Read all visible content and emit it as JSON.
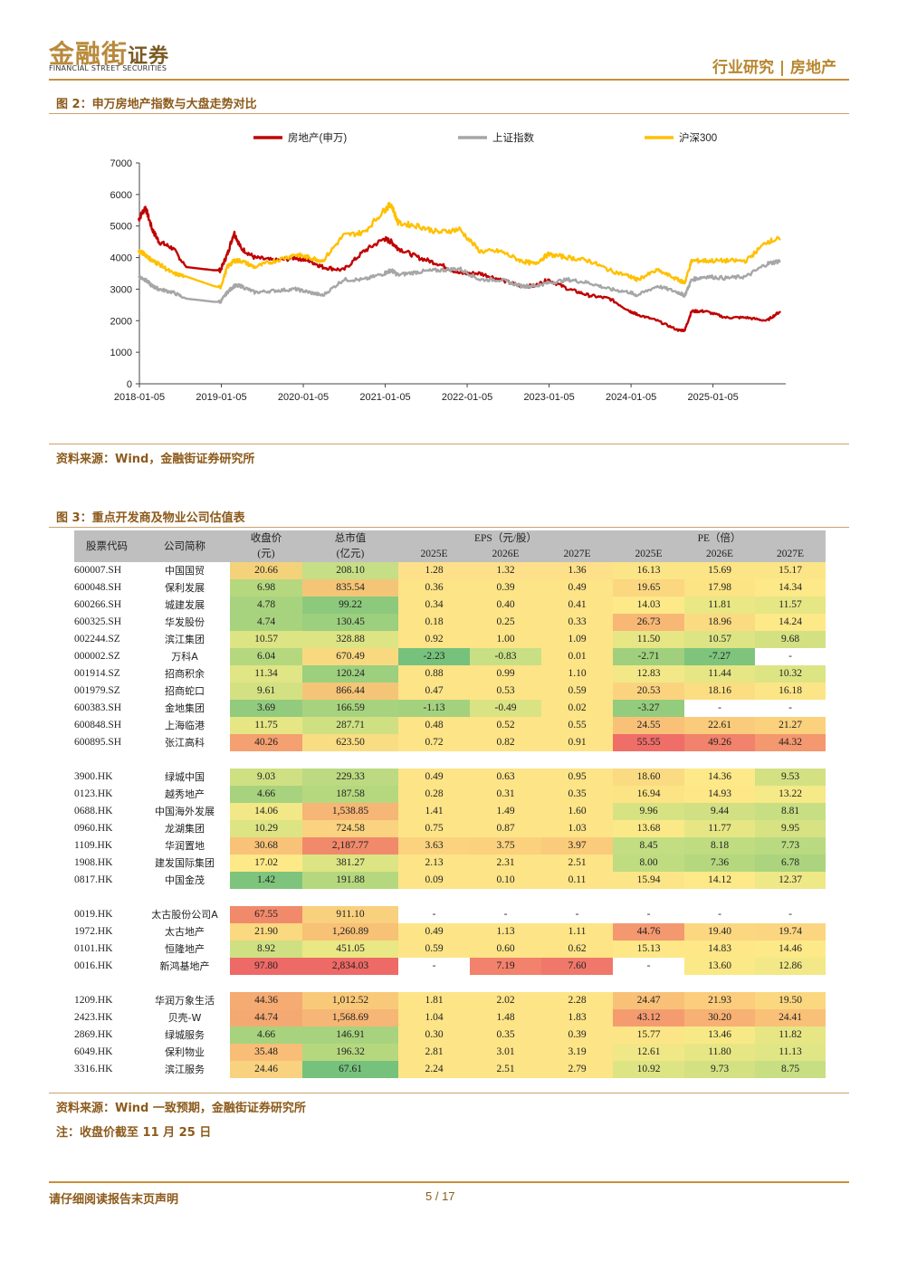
{
  "header": {
    "logo_cn": "金融街",
    "logo_cn_suffix": "证券",
    "logo_en": "FINANCIAL STREET SECURITIES",
    "category": "行业研究 | 房地产"
  },
  "figure2": {
    "title": "图 2：申万房地产指数与大盘走势对比",
    "source": "资料来源：Wind，金融街证券研究所"
  },
  "chart_data": {
    "type": "line",
    "title": "",
    "xlabel": "",
    "ylabel": "",
    "ylim": [
      0,
      7000
    ],
    "yticks": [
      "0",
      "1000",
      "2000",
      "3000",
      "4000",
      "5000",
      "6000",
      "7000"
    ],
    "xticks": [
      "2018-01-05",
      "2019-01-05",
      "2020-01-05",
      "2021-01-05",
      "2022-01-05",
      "2023-01-05",
      "2024-01-05",
      "2025-01-05"
    ],
    "legend_position": "top",
    "grid": false,
    "x": [
      "2018-01",
      "2018-02",
      "2018-03",
      "2018-04",
      "2018-06",
      "2018-08",
      "2018-12",
      "2019-01",
      "2019-02",
      "2019-03",
      "2019-04",
      "2019-06",
      "2019-09",
      "2019-12",
      "2020-02",
      "2020-04",
      "2020-07",
      "2020-10",
      "2021-01",
      "2021-02",
      "2021-03",
      "2021-06",
      "2021-09",
      "2021-12",
      "2022-03",
      "2022-06",
      "2022-09",
      "2022-11",
      "2023-01",
      "2023-04",
      "2023-07",
      "2023-10",
      "2024-01",
      "2024-02",
      "2024-05",
      "2024-08",
      "2024-09",
      "2024-10",
      "2024-12",
      "2025-03",
      "2025-06",
      "2025-09",
      "2025-11"
    ],
    "series": [
      {
        "name": "房地产(申万)",
        "color": "#c00000",
        "values": [
          5200,
          5600,
          4900,
          4500,
          4300,
          3700,
          3600,
          3600,
          4100,
          4800,
          4300,
          4000,
          3900,
          4000,
          3900,
          3700,
          3600,
          4200,
          4600,
          4500,
          4300,
          4000,
          3800,
          3500,
          3500,
          3300,
          3100,
          3100,
          3300,
          3000,
          2800,
          2700,
          2300,
          2200,
          2000,
          1700,
          1700,
          2300,
          2300,
          2100,
          2100,
          2000,
          2300
        ]
      },
      {
        "name": "上证指数",
        "color": "#a6a6a6",
        "values": [
          3400,
          3300,
          3100,
          3000,
          2900,
          2700,
          2600,
          2600,
          2900,
          3100,
          3100,
          2900,
          2950,
          3000,
          2900,
          2800,
          3300,
          3300,
          3500,
          3600,
          3450,
          3550,
          3600,
          3650,
          3300,
          3300,
          3100,
          3100,
          3200,
          3300,
          3200,
          3000,
          2900,
          2800,
          3100,
          2900,
          2800,
          3300,
          3400,
          3350,
          3400,
          3800,
          3900
        ]
      },
      {
        "name": "沪深300",
        "color": "#ffc000",
        "values": [
          4200,
          4100,
          3900,
          3800,
          3500,
          3400,
          3100,
          3050,
          3700,
          3900,
          3900,
          3700,
          3900,
          4100,
          4000,
          3900,
          4700,
          4800,
          5500,
          5700,
          5100,
          5000,
          4800,
          4900,
          4200,
          4200,
          3900,
          3800,
          4100,
          4000,
          3900,
          3600,
          3400,
          3300,
          3600,
          3300,
          3200,
          3900,
          3900,
          3900,
          3900,
          4500,
          4600
        ]
      }
    ]
  },
  "figure3": {
    "title": "图 3：重点开发商及物业公司估值表",
    "source": "资料来源：Wind 一致预期，金融街证券研究所",
    "note": "注：收盘价截至 11 月 25 日",
    "headers": {
      "code": "股票代码",
      "name": "公司简称",
      "close": "收盘价",
      "close_unit": "(元)",
      "mcap": "总市值",
      "mcap_unit": "(亿元)",
      "eps": "EPS（元/股）",
      "pe": "PE（倍）",
      "years": [
        "2025E",
        "2026E",
        "2027E",
        "2025E",
        "2026E",
        "2027E"
      ]
    },
    "groups": [
      [
        {
          "code": "600007.SH",
          "name": "中国国贸",
          "close": "20.66",
          "mcap": "208.10",
          "eps": [
            "1.28",
            "1.32",
            "1.36"
          ],
          "pe": [
            "16.13",
            "15.69",
            "15.17"
          ],
          "cc": "#f4d27a",
          "mc": "#c6de85",
          "ec": [
            "#fde089",
            "#fde089",
            "#fde089"
          ],
          "pc": [
            "#fce586",
            "#fce586",
            "#fce586"
          ]
        },
        {
          "code": "600048.SH",
          "name": "保利发展",
          "close": "6.98",
          "mcap": "835.54",
          "eps": [
            "0.36",
            "0.39",
            "0.49"
          ],
          "pe": [
            "19.65",
            "17.98",
            "14.34"
          ],
          "cc": "#b5d87f",
          "mc": "#f5c577",
          "ec": [
            "#fde487",
            "#fde487",
            "#fde487"
          ],
          "pc": [
            "#fbd780",
            "#fce384",
            "#fde988"
          ]
        },
        {
          "code": "600266.SH",
          "name": "城建发展",
          "close": "4.78",
          "mcap": "99.22",
          "eps": [
            "0.34",
            "0.40",
            "0.41"
          ],
          "pe": [
            "14.03",
            "11.81",
            "11.57"
          ],
          "cc": "#a8d37e",
          "mc": "#8cc97d",
          "ec": [
            "#fde487",
            "#fde487",
            "#fde487"
          ],
          "pc": [
            "#fde988",
            "#eae785",
            "#e6e685"
          ]
        },
        {
          "code": "600325.SH",
          "name": "华发股份",
          "close": "4.74",
          "mcap": "130.45",
          "eps": [
            "0.18",
            "0.25",
            "0.33"
          ],
          "pe": [
            "26.73",
            "18.96",
            "14.24"
          ],
          "cc": "#a8d37e",
          "mc": "#9ccf7e",
          "ec": [
            "#fde487",
            "#fde487",
            "#fde487"
          ],
          "pc": [
            "#f8b775",
            "#fbdb81",
            "#fde988"
          ]
        },
        {
          "code": "002244.SZ",
          "name": "滨江集团",
          "close": "10.57",
          "mcap": "328.88",
          "eps": [
            "0.92",
            "1.00",
            "1.09"
          ],
          "pe": [
            "11.50",
            "10.57",
            "9.68"
          ],
          "cc": "#dde484",
          "mc": "#dde484",
          "ec": [
            "#fde487",
            "#fde487",
            "#fde487"
          ],
          "pc": [
            "#e6e685",
            "#dde484",
            "#d3e183"
          ]
        },
        {
          "code": "000002.SZ",
          "name": "万科A",
          "close": "6.04",
          "mcap": "670.49",
          "eps": [
            "-2.23",
            "-0.83",
            "0.01"
          ],
          "pe": [
            "-2.71",
            "-7.27",
            "-"
          ],
          "cc": "#b5d87f",
          "mc": "#f8d980",
          "ec": [
            "#76c27c",
            "#c8df84",
            "#fde487"
          ],
          "pc": [
            "#a0d07d",
            "#7ec47c",
            "#ffffff"
          ]
        },
        {
          "code": "001914.SZ",
          "name": "招商积余",
          "close": "11.34",
          "mcap": "120.24",
          "eps": [
            "0.88",
            "0.99",
            "1.10"
          ],
          "pe": [
            "12.83",
            "11.44",
            "10.32"
          ],
          "cc": "#e0e585",
          "mc": "#9ccf7e",
          "ec": [
            "#fde487",
            "#fde487",
            "#fde487"
          ],
          "pc": [
            "#f2e887",
            "#e6e685",
            "#dde484"
          ]
        },
        {
          "code": "001979.SZ",
          "name": "招商蛇口",
          "close": "9.61",
          "mcap": "866.44",
          "eps": [
            "0.47",
            "0.53",
            "0.59"
          ],
          "pe": [
            "20.53",
            "18.16",
            "16.18"
          ],
          "cc": "#d3e183",
          "mc": "#f5c577",
          "ec": [
            "#fde487",
            "#fde487",
            "#fde487"
          ],
          "pc": [
            "#fbd37f",
            "#fbde82",
            "#fce586"
          ]
        },
        {
          "code": "600383.SH",
          "name": "金地集团",
          "close": "3.69",
          "mcap": "166.59",
          "eps": [
            "-1.13",
            "-0.49",
            "0.02"
          ],
          "pe": [
            "-3.27",
            "-",
            "-"
          ],
          "cc": "#92cb7e",
          "mc": "#a8d37e",
          "ec": [
            "#a4d17e",
            "#dae383",
            "#fde487"
          ],
          "pc": [
            "#94cc7d",
            "#ffffff",
            "#ffffff"
          ]
        },
        {
          "code": "600848.SH",
          "name": "上海临港",
          "close": "11.75",
          "mcap": "287.71",
          "eps": [
            "0.48",
            "0.52",
            "0.55"
          ],
          "pe": [
            "24.55",
            "22.61",
            "21.27"
          ],
          "cc": "#e6e685",
          "mc": "#cfe083",
          "ec": [
            "#fde487",
            "#fde487",
            "#fde487"
          ],
          "pc": [
            "#f9c178",
            "#facb7b",
            "#fbd17e"
          ]
        },
        {
          "code": "600895.SH",
          "name": "张江高科",
          "close": "40.26",
          "mcap": "623.50",
          "eps": [
            "0.72",
            "0.82",
            "0.91"
          ],
          "pe": [
            "55.55",
            "49.26",
            "44.32"
          ],
          "cc": "#f4a070",
          "mc": "#f9dd82",
          "ec": [
            "#fde487",
            "#fde487",
            "#fde487"
          ],
          "pc": [
            "#ef6e68",
            "#f1826b",
            "#f4986f"
          ]
        }
      ],
      [
        {
          "code": "3900.HK",
          "name": "绿城中国",
          "close": "9.03",
          "mcap": "229.33",
          "eps": [
            "0.49",
            "0.63",
            "0.95"
          ],
          "pe": [
            "18.60",
            "14.36",
            "9.53"
          ],
          "cc": "#cfe083",
          "mc": "#bcda81",
          "ec": [
            "#fde487",
            "#fde487",
            "#fde487"
          ],
          "pc": [
            "#fbdb81",
            "#fde988",
            "#d3e183"
          ]
        },
        {
          "code": "0123.HK",
          "name": "越秀地产",
          "close": "4.66",
          "mcap": "187.58",
          "eps": [
            "0.28",
            "0.31",
            "0.35"
          ],
          "pe": [
            "16.94",
            "14.93",
            "13.22"
          ],
          "cc": "#a8d37e",
          "mc": "#b5d87f",
          "ec": [
            "#fde487",
            "#fde487",
            "#fde487"
          ],
          "pc": [
            "#fce384",
            "#fde787",
            "#f6e987"
          ]
        },
        {
          "code": "0688.HK",
          "name": "中国海外发展",
          "close": "14.06",
          "mcap": "1,538.85",
          "eps": [
            "1.41",
            "1.49",
            "1.60"
          ],
          "pe": [
            "9.96",
            "9.44",
            "8.81"
          ],
          "cc": "#f2e887",
          "mc": "#f6b675",
          "ec": [
            "#fde487",
            "#fde487",
            "#fde487"
          ],
          "pc": [
            "#d7e283",
            "#d0e083",
            "#c8de82"
          ]
        },
        {
          "code": "0960.HK",
          "name": "龙湖集团",
          "close": "10.29",
          "mcap": "724.58",
          "eps": [
            "0.75",
            "0.87",
            "1.03"
          ],
          "pe": [
            "13.68",
            "11.77",
            "9.95"
          ],
          "cc": "#dde484",
          "mc": "#f9d37f",
          "ec": [
            "#fde487",
            "#fde487",
            "#fde487"
          ],
          "pc": [
            "#fbe987",
            "#e6e685",
            "#d7e283"
          ]
        },
        {
          "code": "1109.HK",
          "name": "华润置地",
          "close": "30.68",
          "mcap": "2,187.77",
          "eps": [
            "3.63",
            "3.75",
            "3.97"
          ],
          "pe": [
            "8.45",
            "8.18",
            "7.73"
          ],
          "cc": "#f8c378",
          "mc": "#f08a6b",
          "ec": [
            "#fbd37f",
            "#fbd17e",
            "#facb7b"
          ],
          "pc": [
            "#c3dd82",
            "#bfdc81",
            "#b9da80"
          ]
        },
        {
          "code": "1908.HK",
          "name": "建发国际集团",
          "close": "17.02",
          "mcap": "381.27",
          "eps": [
            "2.13",
            "2.31",
            "2.51"
          ],
          "pe": [
            "8.00",
            "7.36",
            "6.78"
          ],
          "cc": "#fde988",
          "mc": "#dde484",
          "ec": [
            "#fde487",
            "#fde487",
            "#fde487"
          ],
          "pc": [
            "#bfdc81",
            "#b5d87f",
            "#acd47e"
          ]
        },
        {
          "code": "0817.HK",
          "name": "中国金茂",
          "close": "1.42",
          "mcap": "191.88",
          "eps": [
            "0.09",
            "0.10",
            "0.11"
          ],
          "pe": [
            "15.94",
            "14.12",
            "12.37"
          ],
          "cc": "#7ec47c",
          "mc": "#b5d87f",
          "ec": [
            "#fde487",
            "#fde487",
            "#fde487"
          ],
          "pc": [
            "#fce586",
            "#fde988",
            "#eee887"
          ]
        }
      ],
      [
        {
          "code": "0019.HK",
          "name": "太古股份公司A",
          "close": "67.55",
          "mcap": "911.10",
          "eps": [
            "-",
            "-",
            "-"
          ],
          "pe": [
            "-",
            "-",
            "-"
          ],
          "cc": "#f18a6b",
          "mc": "#f8d07e",
          "ec": [
            "#ffffff",
            "#ffffff",
            "#ffffff"
          ],
          "pc": [
            "#ffffff",
            "#ffffff",
            "#ffffff"
          ]
        },
        {
          "code": "1972.HK",
          "name": "太古地产",
          "close": "21.90",
          "mcap": "1,260.89",
          "eps": [
            "0.49",
            "1.13",
            "1.11"
          ],
          "pe": [
            "44.76",
            "19.40",
            "19.74"
          ],
          "cc": "#fbd980",
          "mc": "#f7c176",
          "ec": [
            "#fde487",
            "#fde487",
            "#fde487"
          ],
          "pc": [
            "#f4986f",
            "#fbd780",
            "#fbd580"
          ]
        },
        {
          "code": "0101.HK",
          "name": "恒隆地产",
          "close": "8.92",
          "mcap": "451.05",
          "eps": [
            "0.59",
            "0.60",
            "0.62"
          ],
          "pe": [
            "15.13",
            "14.83",
            "14.46"
          ],
          "cc": "#cfe083",
          "mc": "#eae785",
          "ec": [
            "#fde487",
            "#fde487",
            "#fde487"
          ],
          "pc": [
            "#fde787",
            "#fde787",
            "#fde988"
          ]
        },
        {
          "code": "0016.HK",
          "name": "新鸿基地产",
          "close": "97.80",
          "mcap": "2,834.03",
          "eps": [
            "-",
            "7.19",
            "7.60"
          ],
          "pe": [
            "-",
            "13.60",
            "12.86"
          ],
          "cc": "#ee6a66",
          "mc": "#ee6a66",
          "ec": [
            "#ffffff",
            "#f2826b",
            "#f0786a"
          ],
          "pc": [
            "#ffffff",
            "#fbe987",
            "#f2e887"
          ]
        }
      ],
      [
        {
          "code": "1209.HK",
          "name": "华润万象生活",
          "close": "44.36",
          "mcap": "1,012.52",
          "eps": [
            "1.81",
            "2.02",
            "2.28"
          ],
          "pe": [
            "24.47",
            "21.93",
            "19.50"
          ],
          "cc": "#f5ab72",
          "mc": "#f8c979",
          "ec": [
            "#fde487",
            "#fde487",
            "#fde487"
          ],
          "pc": [
            "#f9c178",
            "#fbcd7c",
            "#fbd780"
          ]
        },
        {
          "code": "2423.HK",
          "name": "贝壳-W",
          "close": "44.74",
          "mcap": "1,568.69",
          "eps": [
            "1.04",
            "1.48",
            "1.83"
          ],
          "pe": [
            "43.12",
            "30.20",
            "24.41"
          ],
          "cc": "#f5a972",
          "mc": "#f6b675",
          "ec": [
            "#fde487",
            "#fde487",
            "#fde487"
          ],
          "pc": [
            "#f49c70",
            "#f7b174",
            "#f9c178"
          ]
        },
        {
          "code": "2869.HK",
          "name": "绿城服务",
          "close": "4.66",
          "mcap": "146.91",
          "eps": [
            "0.30",
            "0.35",
            "0.39"
          ],
          "pe": [
            "15.77",
            "13.46",
            "11.82"
          ],
          "cc": "#a8d37e",
          "mc": "#a8d37e",
          "ec": [
            "#fde487",
            "#fde487",
            "#fde487"
          ],
          "pc": [
            "#fce586",
            "#f8e987",
            "#e6e685"
          ]
        },
        {
          "code": "6049.HK",
          "name": "保利物业",
          "close": "35.48",
          "mcap": "196.32",
          "eps": [
            "2.81",
            "3.01",
            "3.19"
          ],
          "pe": [
            "12.61",
            "11.80",
            "11.13"
          ],
          "cc": "#f8be77",
          "mc": "#b5d87f",
          "ec": [
            "#fde487",
            "#fde487",
            "#fde487"
          ],
          "pc": [
            "#f0e887",
            "#e6e685",
            "#e0e585"
          ]
        },
        {
          "code": "3316.HK",
          "name": "滨江服务",
          "close": "24.46",
          "mcap": "67.61",
          "eps": [
            "2.24",
            "2.51",
            "2.79"
          ],
          "pe": [
            "10.92",
            "9.73",
            "8.75"
          ],
          "cc": "#f9d27f",
          "mc": "#76c27c",
          "ec": [
            "#fde487",
            "#fde487",
            "#fde487"
          ],
          "pc": [
            "#dde484",
            "#d3e183",
            "#c8de82"
          ]
        }
      ]
    ]
  },
  "footer": {
    "disclaimer": "请仔细阅读报告末页声明",
    "page": "5 / 17"
  }
}
